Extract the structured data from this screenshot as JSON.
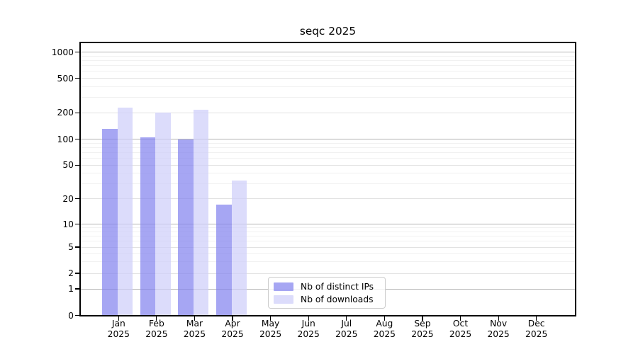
{
  "title": "seqc 2025",
  "chart_data": {
    "type": "bar",
    "title": "seqc 2025",
    "categories": [
      "Jan 2025",
      "Feb 2025",
      "Mar 2025",
      "Apr 2025",
      "May 2025",
      "Jun 2025",
      "Jul 2025",
      "Aug 2025",
      "Sep 2025",
      "Oct 2025",
      "Nov 2025",
      "Dec 2025"
    ],
    "series": [
      {
        "name": "Nb of distinct IPs",
        "color": "rgba(131,131,238,0.72)",
        "values": [
          132,
          106,
          100,
          17,
          null,
          null,
          null,
          null,
          null,
          null,
          null,
          null
        ]
      },
      {
        "name": "Nb of downloads",
        "color": "rgba(206,206,249,0.72)",
        "values": [
          230,
          200,
          217,
          33,
          null,
          null,
          null,
          null,
          null,
          null,
          null,
          null
        ]
      }
    ],
    "y_axis": {
      "scale": "symlog",
      "ylim": [
        0,
        1000
      ],
      "ticks": [
        0,
        1,
        2,
        5,
        10,
        20,
        50,
        100,
        200,
        500,
        1000
      ],
      "tick_labels": [
        "0",
        "1",
        "2",
        "5",
        "10",
        "20",
        "50",
        "100",
        "200",
        "500",
        "1000"
      ],
      "major_gridlines": [
        1,
        10,
        100,
        1000
      ],
      "mid_gridlines": [
        2,
        5,
        20,
        50,
        200,
        500
      ],
      "minor_gridlines": [
        3,
        4,
        6,
        7,
        8,
        9,
        30,
        40,
        60,
        70,
        80,
        90,
        300,
        400,
        600,
        700,
        800,
        900
      ]
    },
    "legend_position": "inside-bottom-center-left",
    "grid": "on"
  }
}
